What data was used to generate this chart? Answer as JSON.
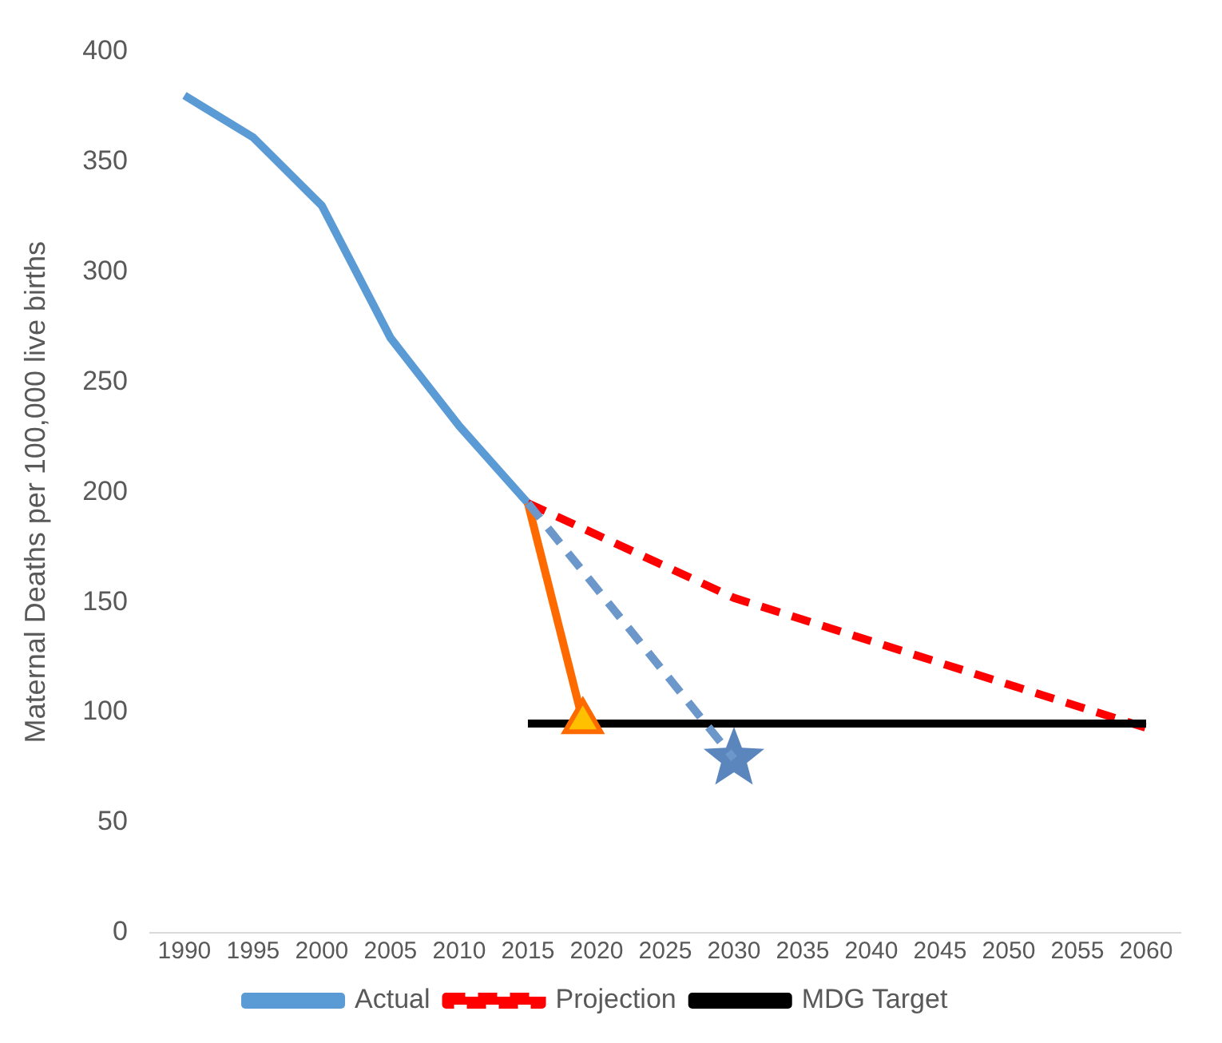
{
  "chart_data": {
    "type": "line",
    "ylabel": "Maternal Deaths per 100,000 live births",
    "xlim": [
      1987.5,
      2062.5
    ],
    "xticks": [
      1990,
      1995,
      2000,
      2005,
      2010,
      2015,
      2020,
      2025,
      2030,
      2035,
      2040,
      2045,
      2050,
      2055,
      2060
    ],
    "ylim": [
      0,
      400
    ],
    "yticks": [
      0,
      50,
      100,
      150,
      200,
      250,
      300,
      350,
      400
    ],
    "grid": false,
    "legend": "bottom",
    "series": [
      {
        "name": "Actual",
        "color": "#5b9bd5",
        "x": [
          1990,
          1995,
          2000,
          2005,
          2010,
          2015
        ],
        "values": [
          380,
          361,
          330,
          270,
          230,
          195
        ],
        "line_style": "solid",
        "marker": "none"
      },
      {
        "name": "Projection",
        "color": "#ff0000",
        "x": [
          2015,
          2030,
          2060
        ],
        "values": [
          195,
          152,
          93
        ],
        "line_style": "dashed",
        "marker": "none"
      },
      {
        "name": "MDG Target",
        "color": "#000000",
        "x": [
          2015,
          2060
        ],
        "values": [
          95,
          95
        ],
        "line_style": "solid",
        "marker": "none"
      },
      {
        "color": "#ff6a00",
        "x": [
          2015,
          2019
        ],
        "values": [
          195,
          96
        ],
        "line_style": "solid",
        "marker": "none"
      },
      {
        "color": "#6b97cb",
        "x": [
          2015,
          2030
        ],
        "values": [
          195,
          79
        ],
        "line_style": "dashed",
        "marker": "none"
      },
      {
        "type": "scatter",
        "color": "#ffc000",
        "x": [
          2019
        ],
        "values": [
          96
        ],
        "marker": "triangle"
      },
      {
        "type": "scatter",
        "color": "#5b85bd",
        "x": [
          2030
        ],
        "values": [
          79
        ],
        "marker": "star"
      }
    ]
  }
}
